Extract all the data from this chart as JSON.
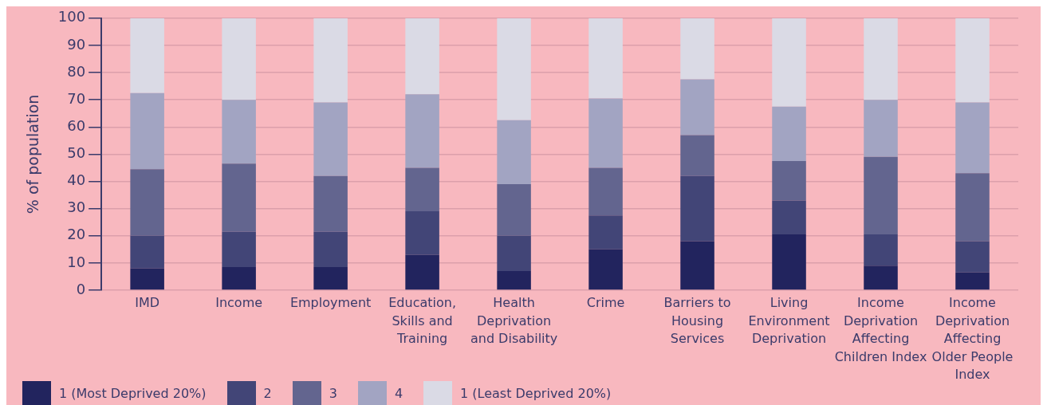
{
  "chart_data": {
    "type": "bar",
    "stacked": true,
    "ylabel": "% of population",
    "categories": [
      "IMD",
      "Income",
      "Employment",
      "Education, Skills and Training",
      "Health Deprivation and Disability",
      "Crime",
      "Barriers to Housing Services",
      "Living Environment Deprivation",
      "Income Deprivation Affecting Children Index",
      "Income Deprivation Affecting Older People Index"
    ],
    "series": [
      {
        "name": "1 (Most Deprived 20%)",
        "color": "#22245e",
        "values": [
          8,
          8.5,
          8.5,
          13,
          7,
          15,
          18,
          20.5,
          9,
          6.5
        ]
      },
      {
        "name": "2",
        "color": "#424577",
        "values": [
          12,
          13,
          13,
          16,
          13,
          12.5,
          24,
          12.5,
          11.5,
          11.5
        ]
      },
      {
        "name": "3",
        "color": "#63658f",
        "values": [
          24.5,
          25,
          20.5,
          16,
          19,
          17.5,
          15,
          14.5,
          28.5,
          25
        ]
      },
      {
        "name": "4",
        "color": "#a2a4c2",
        "values": [
          28,
          23.5,
          27,
          27,
          23.5,
          25.5,
          20.5,
          20,
          21,
          26
        ]
      },
      {
        "name": "1 (Least Deprived 20%)",
        "color": "#dadae5",
        "values": [
          27.5,
          30,
          31,
          28,
          37.5,
          29.5,
          22.5,
          32.5,
          30,
          31
        ]
      }
    ],
    "ylim": [
      0,
      100
    ],
    "yticks": [
      0,
      10,
      20,
      30,
      40,
      50,
      60,
      70,
      80,
      90,
      100
    ],
    "grid": "y",
    "legend": "bottom left"
  }
}
